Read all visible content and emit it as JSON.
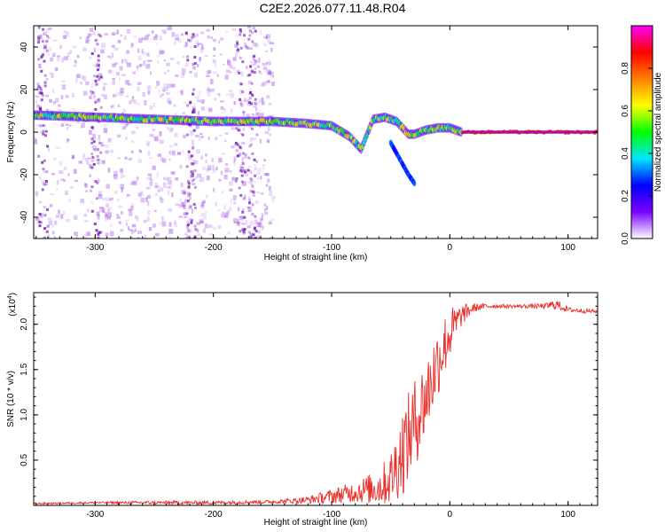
{
  "figure": {
    "title": "C2E2.2026.077.11.48.R04"
  },
  "chart_data": [
    {
      "type": "heatmap",
      "panel": "spectrogram",
      "xlabel": "Height of straight line (km)",
      "ylabel": "Frequency (Hz)",
      "xlim": [
        -352,
        125
      ],
      "ylim": [
        -50,
        50
      ],
      "xticks": [
        -300,
        -200,
        -100,
        0,
        100
      ],
      "xtick_labels": [
        "-300",
        "-200",
        "-100",
        "0",
        "100"
      ],
      "yticks": [
        -40,
        -20,
        0,
        20,
        40
      ],
      "ytick_labels": [
        "-40",
        "-20",
        "0",
        "20",
        "40"
      ],
      "colorbar": {
        "label": "Normalized spectral amplitude",
        "range": [
          0.0,
          1.0
        ],
        "ticks": [
          0.0,
          0.2,
          0.4,
          0.6,
          0.8
        ],
        "tick_labels": [
          "0.0",
          "0.2",
          "0.4",
          "0.6",
          "0.8"
        ],
        "colormap": [
          "#ffffff",
          "#7a00ff",
          "#0000ff",
          "#00e5ff",
          "#00ff00",
          "#ffff00",
          "#ff7f00",
          "#ff0000",
          "#ff00ff"
        ]
      },
      "main_track": {
        "x": [
          -352,
          -300,
          -250,
          -200,
          -150,
          -120,
          -100,
          -85,
          -75,
          -65,
          -55,
          -45,
          -35,
          -30,
          -25,
          -20,
          -10,
          0,
          10,
          20,
          125
        ],
        "y": [
          8,
          7,
          6,
          5,
          5,
          4,
          3,
          -2,
          -8,
          6,
          7,
          5,
          -1,
          -1,
          0,
          1,
          2,
          2,
          0,
          0,
          0
        ]
      },
      "branch_track": {
        "x": [
          -50,
          -45,
          -40,
          -35,
          -30
        ],
        "y": [
          -5,
          -10,
          -15,
          -20,
          -24
        ]
      },
      "noise_region_x": [
        -352,
        -150
      ]
    },
    {
      "type": "line",
      "panel": "snr",
      "xlabel": "Height of straight line (km)",
      "ylabel": "SNR (10 * v/v)",
      "scale_label": "(x10",
      "scale_exponent": "4",
      "scale_suffix": ")",
      "xlim": [
        -352,
        125
      ],
      "ylim": [
        0,
        2.35
      ],
      "xticks": [
        -300,
        -200,
        -100,
        0,
        100
      ],
      "xtick_labels": [
        "-300",
        "-200",
        "-100",
        "0",
        "100"
      ],
      "yticks": [
        0.5,
        1.0,
        1.5,
        2.0
      ],
      "ytick_labels": [
        "0.5",
        "1.0",
        "1.5",
        "2.0"
      ],
      "color": "#e8302c",
      "series": [
        {
          "name": "SNR",
          "x": [
            -352,
            -300,
            -250,
            -200,
            -150,
            -120,
            -100,
            -80,
            -60,
            -50,
            -40,
            -30,
            -20,
            -10,
            0,
            10,
            20,
            30,
            40,
            60,
            80,
            90,
            100,
            125
          ],
          "y": [
            0.02,
            0.03,
            0.03,
            0.03,
            0.04,
            0.06,
            0.1,
            0.15,
            0.2,
            0.3,
            0.6,
            0.9,
            1.2,
            1.6,
            1.9,
            2.1,
            2.18,
            2.2,
            2.2,
            2.2,
            2.2,
            2.22,
            2.16,
            2.14
          ]
        }
      ],
      "jitter": [
        0.01,
        0.01,
        0.02,
        0.02,
        0.02,
        0.04,
        0.08,
        0.12,
        0.2,
        0.3,
        0.5,
        0.5,
        0.45,
        0.4,
        0.3,
        0.12,
        0.05,
        0.03,
        0.02,
        0.02,
        0.03,
        0.06,
        0.03,
        0.02
      ]
    }
  ]
}
